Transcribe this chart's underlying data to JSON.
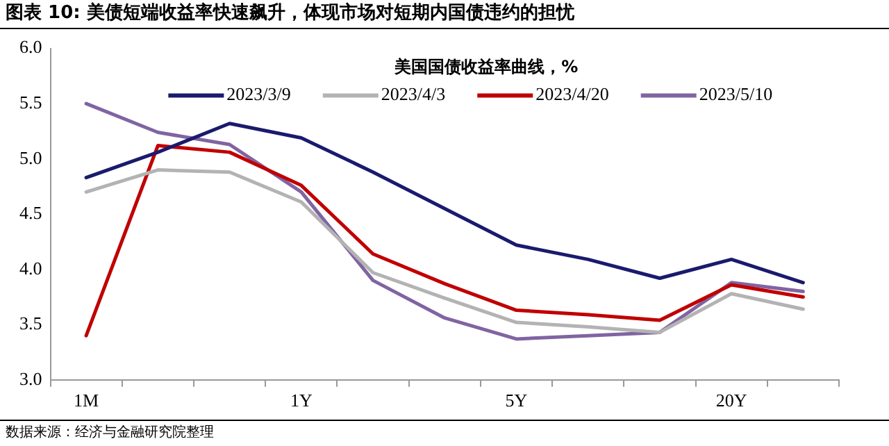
{
  "chart_data": {
    "type": "line",
    "title": "图表 10:  美债短端收益率快速飙升，体现市场对短期内国债违约的担忧",
    "legend_title": "美国国债收益率曲线，%",
    "annotations": [
      "数据来源：经济与金融研究院整理"
    ],
    "categories": [
      "1M",
      null,
      null,
      "1Y",
      null,
      null,
      "5Y",
      null,
      null,
      "20Y",
      null
    ],
    "series": [
      {
        "name": "2023/3/9",
        "color": "#1a1a6e",
        "values": [
          4.83,
          5.06,
          5.32,
          5.19,
          4.88,
          4.55,
          4.22,
          4.09,
          3.92,
          4.09,
          3.88
        ]
      },
      {
        "name": "2023/4/3",
        "color": "#b3b3b3",
        "values": [
          4.7,
          4.9,
          4.88,
          4.61,
          3.97,
          3.74,
          3.52,
          3.48,
          3.43,
          3.78,
          3.64
        ]
      },
      {
        "name": "2023/4/20",
        "color": "#c00000",
        "values": [
          3.4,
          5.12,
          5.06,
          4.76,
          4.14,
          3.87,
          3.63,
          3.59,
          3.54,
          3.86,
          3.75
        ]
      },
      {
        "name": "2023/5/10",
        "color": "#8064a2",
        "values": [
          5.5,
          5.24,
          5.13,
          4.7,
          3.9,
          3.56,
          3.37,
          3.4,
          3.43,
          3.88,
          3.8
        ]
      }
    ],
    "ylim": [
      3.0,
      6.0
    ],
    "yticks": [
      {
        "value": 3.0,
        "label": "3.0"
      },
      {
        "value": 3.5,
        "label": "3.5"
      },
      {
        "value": 4.0,
        "label": "4.0"
      },
      {
        "value": 4.5,
        "label": "4.5"
      },
      {
        "value": 5.0,
        "label": "5.0"
      },
      {
        "value": 5.5,
        "label": "5.5"
      },
      {
        "value": 6.0,
        "label": "6.0"
      }
    ],
    "legend": "top",
    "grid": false,
    "marker": "none",
    "line_style": "solid"
  }
}
